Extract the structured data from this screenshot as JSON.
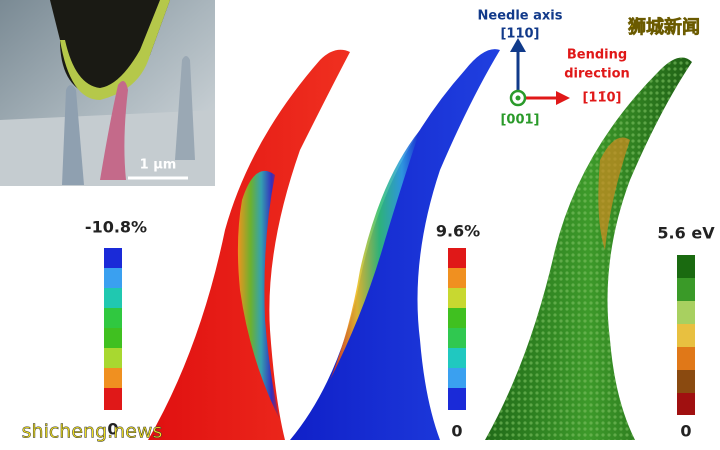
{
  "inset": {
    "scale_bar": "1 µm"
  },
  "orientation": {
    "needle_axis": [
      "Needle axis",
      "[110]"
    ],
    "bending_direction": [
      "Bending",
      "direction"
    ],
    "bending_index": "[11̄0]",
    "normal_index": "[001]"
  },
  "colorbars": [
    {
      "top": "-10.8%",
      "bottom": "0"
    },
    {
      "top": "9.6%",
      "bottom": "0"
    },
    {
      "top": "5.6 eV",
      "bottom": "0"
    }
  ],
  "watermarks": {
    "top_right": "狮城新闻",
    "bottom_left": "shicheng.news"
  }
}
